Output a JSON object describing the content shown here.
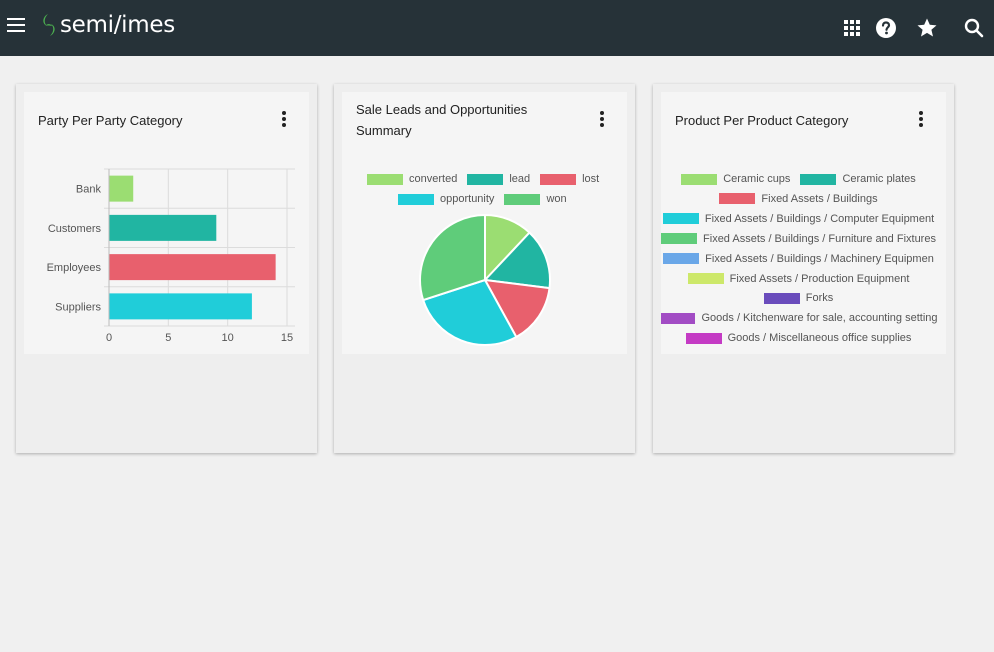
{
  "app": {
    "logo_text": "semi/imes"
  },
  "topbar_icons": [
    "apps-grid-icon",
    "help-icon",
    "star-icon",
    "search-icon"
  ],
  "cards": {
    "party": {
      "title": "Party Per Party Category",
      "chart_data": {
        "type": "bar",
        "orientation": "horizontal",
        "categories": [
          "Bank",
          "Customers",
          "Employees",
          "Suppliers"
        ],
        "values": [
          2,
          9,
          14,
          12
        ],
        "colors": [
          "#9bdd72",
          "#21b5a2",
          "#e8606d",
          "#20cdd9"
        ],
        "xlim": [
          0,
          15
        ],
        "xticks": [
          "0",
          "5",
          "10",
          "15"
        ],
        "grid": true
      }
    },
    "leads": {
      "title_line1": "Sale Leads and Opportunities",
      "title_line2": "Summary",
      "chart_data": {
        "type": "pie",
        "labels": [
          "converted",
          "lead",
          "lost",
          "opportunity",
          "won"
        ],
        "values": [
          12,
          15,
          15,
          28,
          30
        ],
        "colors": [
          "#9bdd72",
          "#21b5a2",
          "#e8606d",
          "#20cdd9",
          "#5fcc7a"
        ],
        "legend_position": "top"
      }
    },
    "product": {
      "title": "Product Per Product Category",
      "legend": [
        {
          "label": "Ceramic cups",
          "color": "#9bdd72"
        },
        {
          "label": "Ceramic plates",
          "color": "#21b5a2"
        },
        {
          "label": "Fixed Assets / Buildings",
          "color": "#e8606d"
        },
        {
          "label": "Fixed Assets / Buildings / Computer Equipment",
          "color": "#20cdd9"
        },
        {
          "label": "Fixed Assets / Buildings / Furniture and Fixtures",
          "color": "#5fcc7a"
        },
        {
          "label": "Fixed Assets / Buildings / Machinery  Equipmen",
          "color": "#6aa7e8"
        },
        {
          "label": "Fixed Assets / Production Equipment",
          "color": "#cde86a"
        },
        {
          "label": "Forks",
          "color": "#6a4cbc"
        },
        {
          "label": "Goods / Kitchenware for sale, accounting setting",
          "color": "#a24cc4"
        },
        {
          "label": "Goods / Miscellaneous office supplies",
          "color": "#c43ac4"
        }
      ]
    }
  }
}
